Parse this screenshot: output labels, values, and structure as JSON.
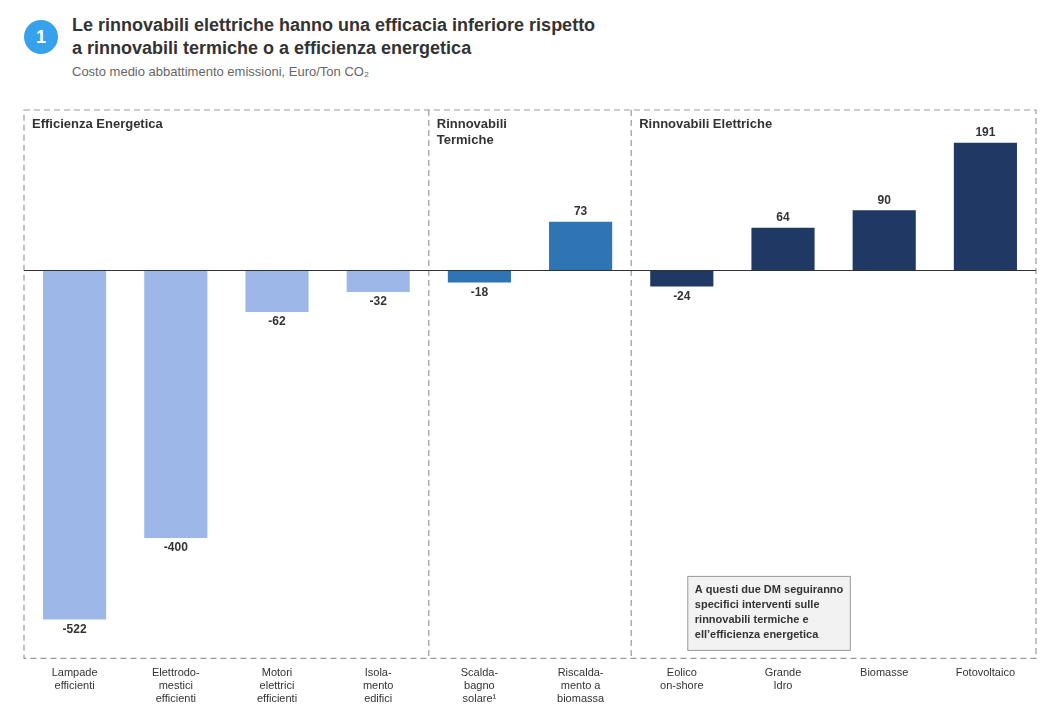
{
  "chart_data": {
    "type": "bar",
    "title_number": "1",
    "title": "Le rinnovabili elettriche hanno una efficacia inferiore rispetto\na rinnovabili termiche o a efficienza energetica",
    "subtitle": "Costo medio abbattimento emissioni, Euro/Ton CO₂",
    "categories": [
      "Lampade\nefficienti",
      "Elettrodo-\nmestici\nefficienti",
      "Motori\nelettrici\nefficienti",
      "Isola-\nmento\nedifici",
      "Scalda-\nbagno\nsolare¹",
      "Riscalda-\nmento a\nbiomassa",
      "Eolico\non-shore",
      "Grande\nIdro",
      "Biomasse",
      "Fotovoltaico"
    ],
    "values": [
      -522,
      -400,
      -62,
      -32,
      -18,
      73,
      -24,
      64,
      90,
      191
    ],
    "colors": [
      "#9db8e8",
      "#9db8e8",
      "#9db8e8",
      "#9db8e8",
      "#2e75b6",
      "#2e75b6",
      "#1f3864",
      "#1f3864",
      "#1f3864",
      "#1f3864"
    ],
    "ylim": [
      -580,
      240
    ],
    "grid": false,
    "data_labels": true,
    "tick_labels": "x",
    "groups": [
      {
        "label": "Efficienza Energetica",
        "categories": [
          "Lampade\nefficienti",
          "Elettrodo-\nmestici\nefficienti",
          "Motori\nelettrici\nefficienti",
          "Isola-\nmento\nedifici"
        ]
      },
      {
        "label": "Rinnovabili\nTermiche",
        "categories": [
          "Scalda-\nbagno\nsolare¹",
          "Riscalda-\nmento a\nbiomassa"
        ]
      },
      {
        "label": "Rinnovabili Elettriche",
        "categories": [
          "Eolico\non-shore",
          "Grande\nIdro",
          "Biomasse",
          "Fotovoltaico"
        ]
      }
    ],
    "annotation": "A questi due DM seguiranno\nspecifici interventi sulle\nrinnovabili termiche e\nell’efficienza energetica"
  }
}
